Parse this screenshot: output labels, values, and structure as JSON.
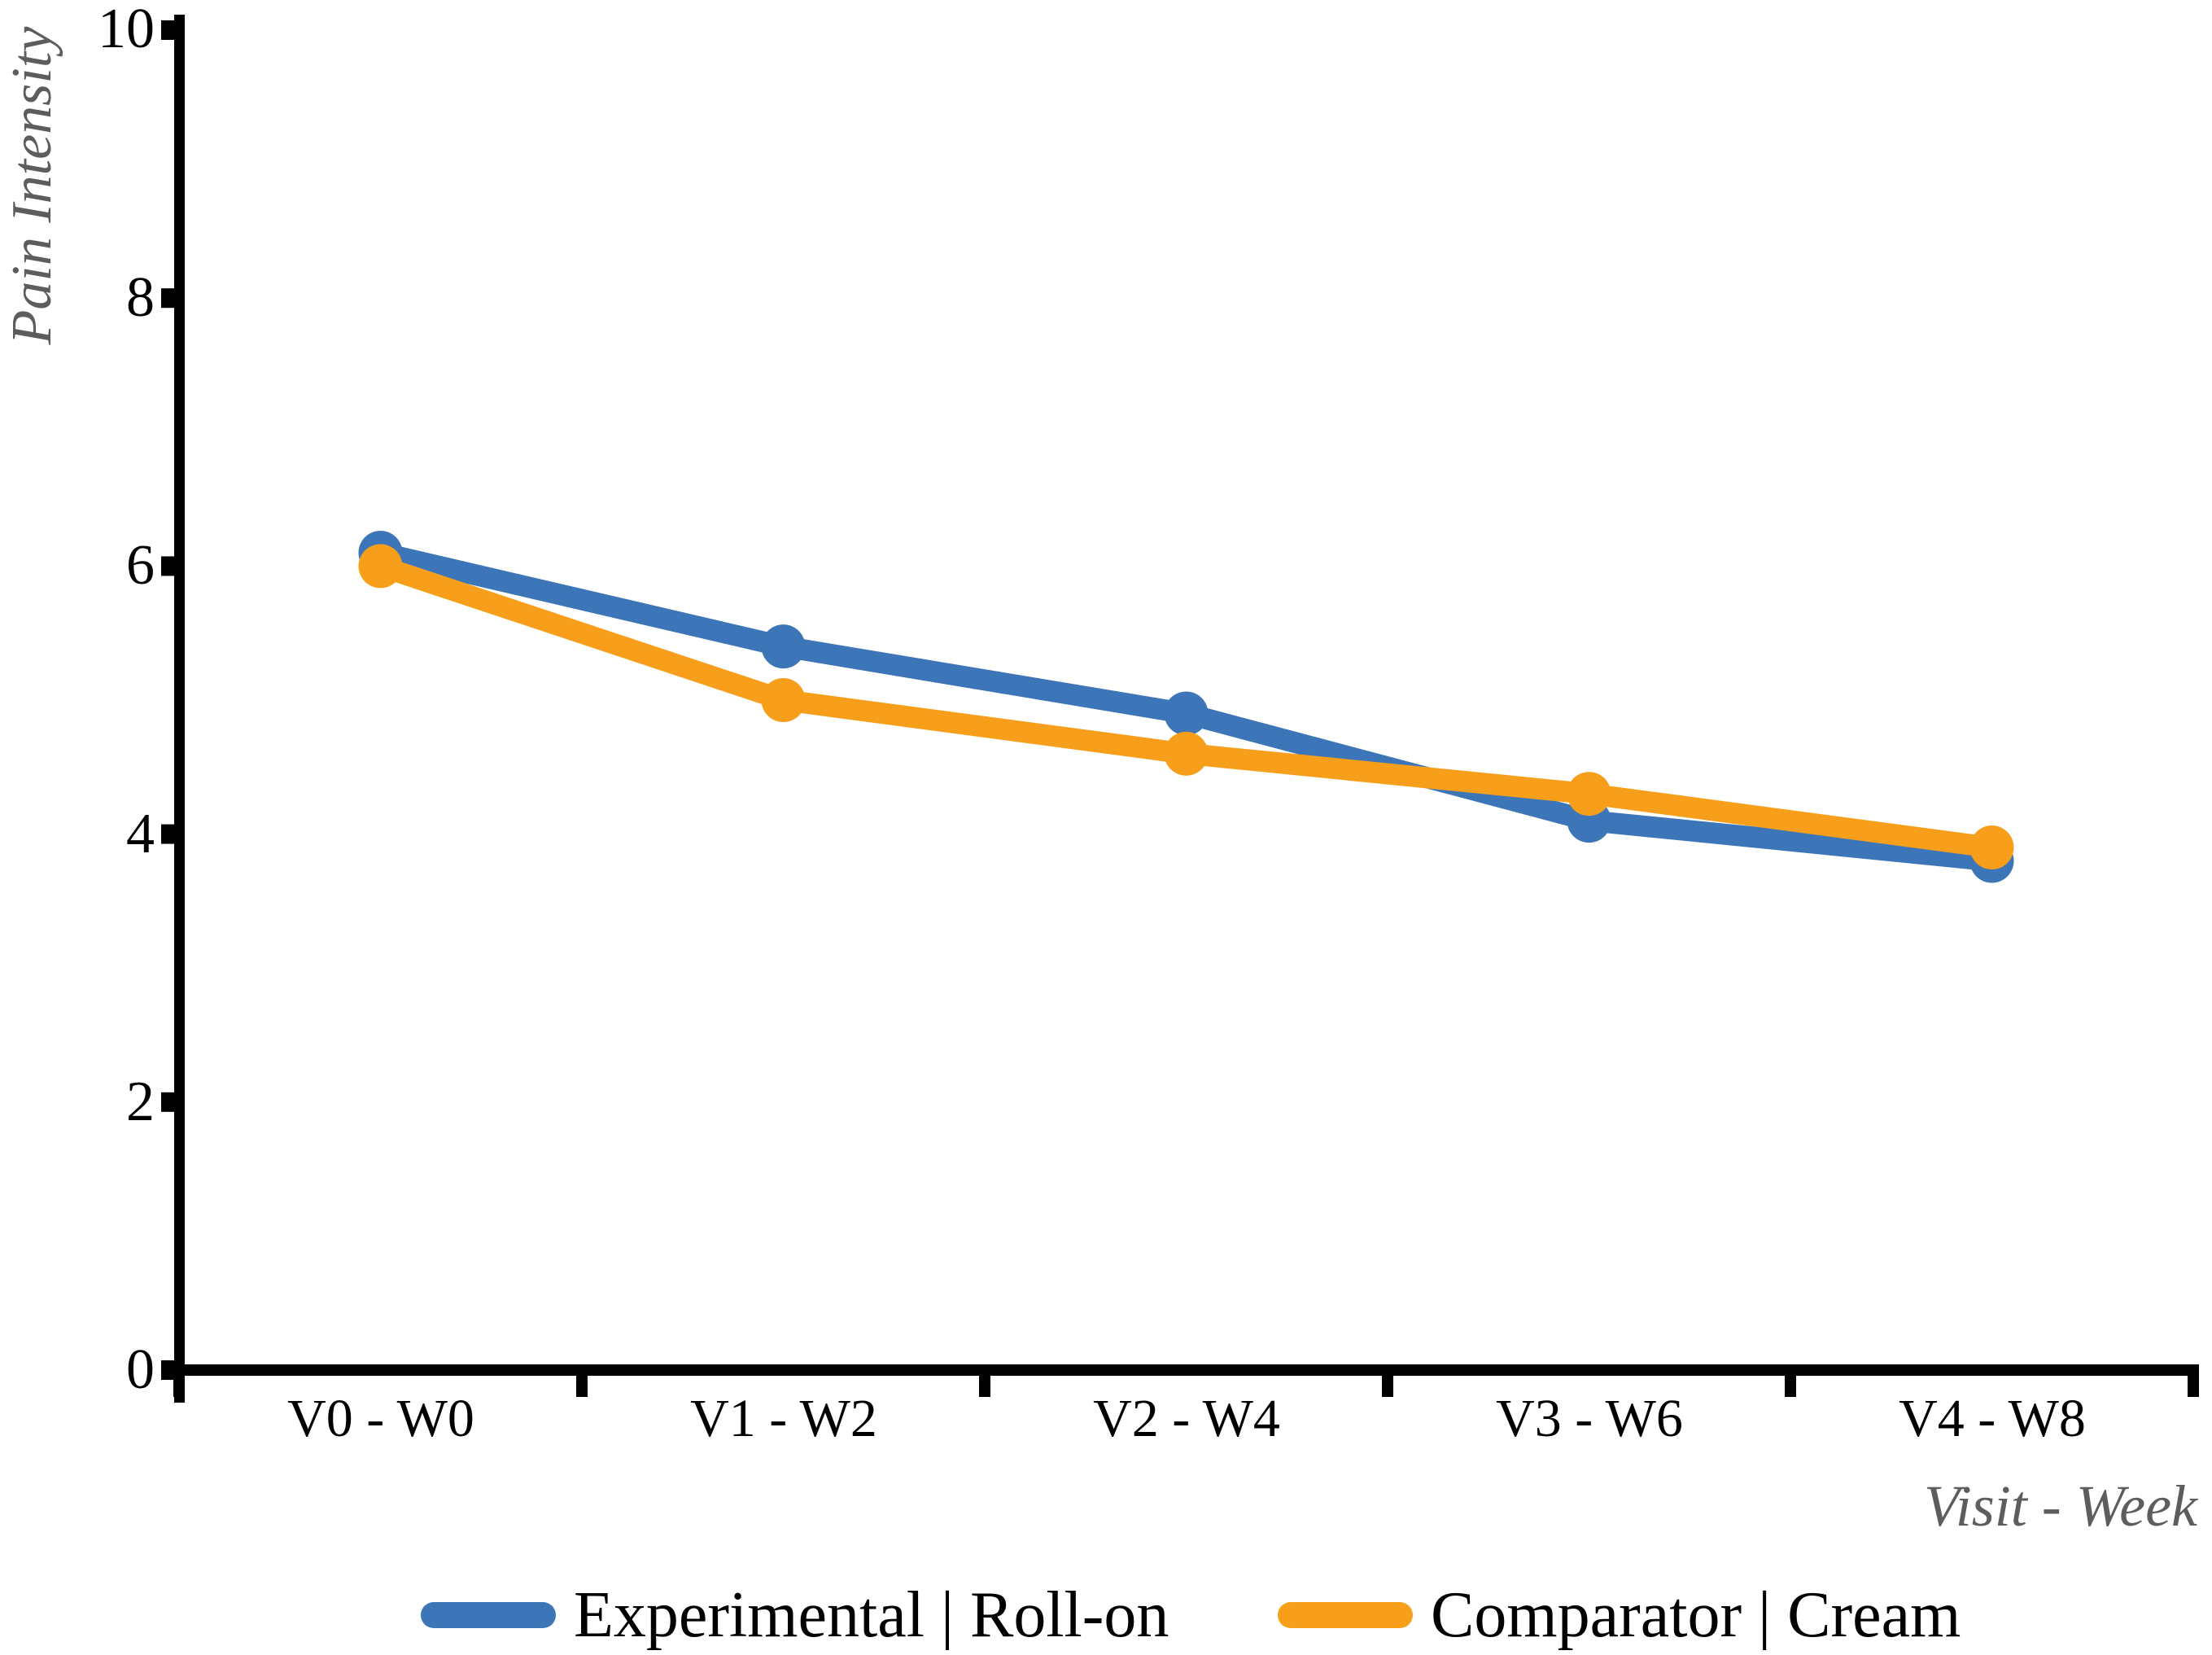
{
  "chart_data": {
    "type": "line",
    "categories": [
      "V0 - W0",
      "V1 - W2",
      "V2 - W4",
      "V3 - W6",
      "V4 - W8"
    ],
    "series": [
      {
        "name": "Experimental | Roll-on",
        "color": "#3C76B8",
        "marker": "circle",
        "values": [
          6.1,
          5.4,
          4.9,
          4.1,
          3.8
        ]
      },
      {
        "name": "Comparator | Cream",
        "color": "#F79F1B",
        "marker": "circle",
        "values": [
          6.0,
          5.0,
          4.6,
          4.3,
          3.9
        ]
      }
    ],
    "xlabel": "Visit - Week",
    "ylabel": "Pain Intensity",
    "ylim": [
      0,
      10
    ],
    "yticks": [
      0,
      2,
      4,
      6,
      8,
      10
    ],
    "grid": false,
    "legend_position": "bottom",
    "axis_color": "#000000",
    "axis_title_color": "#5d5d5d"
  }
}
